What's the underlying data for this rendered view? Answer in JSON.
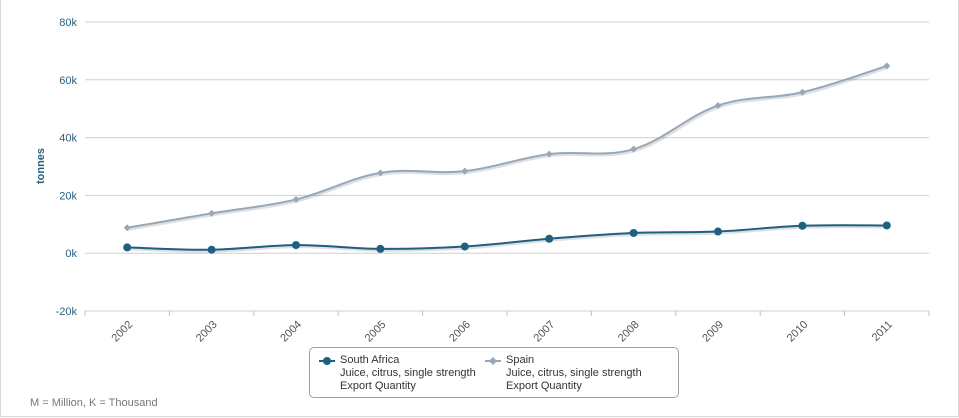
{
  "chart_data": {
    "type": "line",
    "title": "",
    "xlabel": "",
    "ylabel": "tonnes",
    "x": [
      "2002",
      "2003",
      "2004",
      "2005",
      "2006",
      "2007",
      "2008",
      "2009",
      "2010",
      "2011"
    ],
    "ylim": [
      -20000,
      80000
    ],
    "yticks": [
      -20000,
      0,
      20000,
      40000,
      60000,
      80000
    ],
    "ytick_labels": [
      "-20k",
      "0k",
      "20k",
      "40k",
      "60k",
      "80k"
    ],
    "grid": true,
    "legend_position": "bottom-center",
    "series": [
      {
        "name": "South Africa",
        "name_lines": [
          "Juice, citrus, single strength",
          "Export Quantity"
        ],
        "color": "#1f5f80",
        "marker": "circle",
        "values": [
          2000,
          1200,
          2800,
          1500,
          2300,
          5000,
          7000,
          7500,
          9500,
          9600
        ]
      },
      {
        "name": "Spain",
        "name_lines": [
          "Juice, citrus, single strength",
          "Export Quantity"
        ],
        "color": "#98a8b8",
        "marker": "diamond",
        "values": [
          8800,
          13800,
          18600,
          27800,
          28400,
          34300,
          36000,
          51100,
          55700,
          64800
        ]
      }
    ]
  },
  "footnote": "M = Million, K = Thousand"
}
